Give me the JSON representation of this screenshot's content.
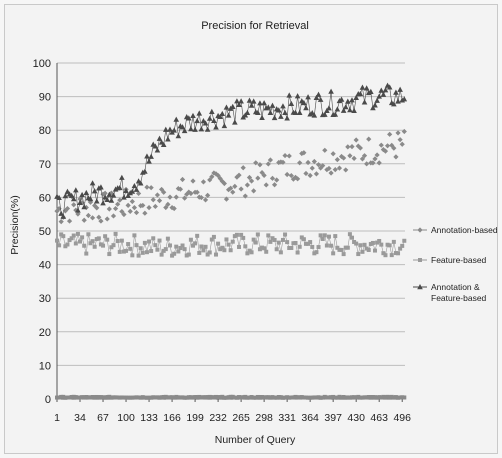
{
  "chart_data": {
    "type": "scatter",
    "title": "Precision for Retrieval",
    "xlabel": "Number of Query",
    "ylabel": "Precision(%)",
    "xlim": [
      1,
      500
    ],
    "ylim": [
      0,
      100
    ],
    "yticks": [
      0,
      10,
      20,
      30,
      40,
      50,
      60,
      70,
      80,
      90,
      100
    ],
    "xticks": [
      1,
      34,
      67,
      100,
      133,
      166,
      199,
      232,
      265,
      298,
      331,
      364,
      397,
      430,
      463,
      496
    ],
    "grid": "horizontal",
    "legend_position": "right",
    "series": [
      {
        "name": "Annotation-based",
        "marker": "diamond",
        "color": "#8a8a8a",
        "x": [
          1,
          25,
          50,
          75,
          100,
          125,
          150,
          175,
          200,
          225,
          250,
          275,
          300,
          325,
          350,
          375,
          400,
          425,
          450,
          475,
          500
        ],
        "values": [
          56,
          57,
          57,
          57,
          58,
          59,
          60,
          61,
          62,
          63,
          64,
          65,
          67,
          69,
          70,
          71,
          72,
          73,
          74,
          75,
          76
        ]
      },
      {
        "name": "Feature-based",
        "marker": "square",
        "color": "#9a9a9a",
        "x": [
          1,
          50,
          100,
          150,
          200,
          250,
          300,
          350,
          400,
          450,
          500
        ],
        "values": [
          46,
          46,
          46,
          45,
          46,
          46,
          46,
          46,
          46,
          46,
          46
        ]
      },
      {
        "name": "Annotation & Feature-based",
        "marker": "triangle",
        "color": "#4a4a4a",
        "x": [
          1,
          25,
          50,
          75,
          100,
          115,
          130,
          145,
          160,
          175,
          200,
          225,
          250,
          275,
          300,
          325,
          350,
          375,
          400,
          425,
          450,
          475,
          500
        ],
        "values": [
          57,
          59,
          61,
          62,
          63,
          65,
          70,
          75,
          79,
          81,
          83,
          84,
          85,
          86,
          86,
          87,
          87,
          88,
          88,
          89,
          90,
          90,
          90
        ]
      },
      {
        "name": "",
        "marker": "square",
        "color": "#8a8a8a",
        "x": [
          1,
          500
        ],
        "values": [
          0.5,
          0.5
        ]
      }
    ]
  },
  "colors": {
    "background": "#f3f3f3",
    "grid": "#bdbdbd",
    "axis": "#555555"
  }
}
